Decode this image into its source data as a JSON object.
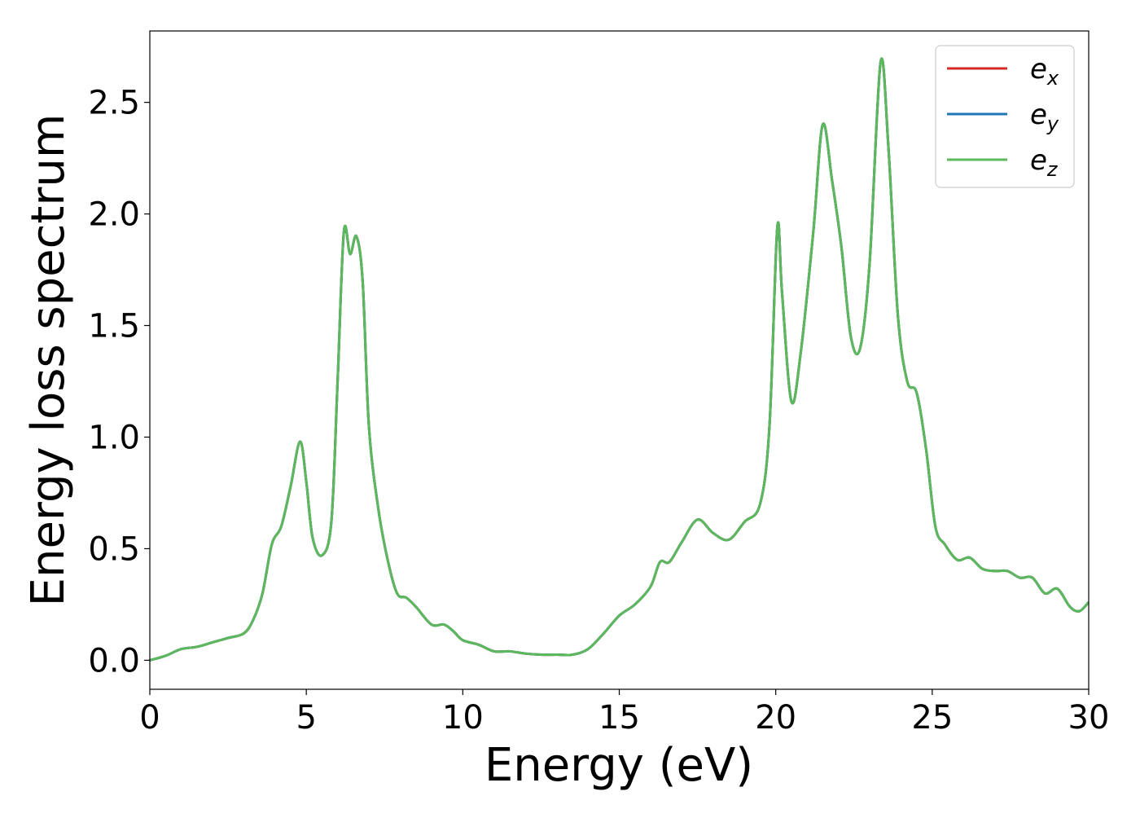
{
  "chart_data": {
    "type": "line",
    "title": "",
    "xlabel": "Energy (eV)",
    "ylabel": "Energy loss spectrum",
    "xlim": [
      0,
      30
    ],
    "ylim": [
      -0.13,
      2.82
    ],
    "xticks": [
      0,
      5,
      10,
      15,
      20,
      25,
      30
    ],
    "xtick_labels": [
      "0",
      "5",
      "10",
      "15",
      "20",
      "25",
      "30"
    ],
    "yticks": [
      0.0,
      0.5,
      1.0,
      1.5,
      2.0,
      2.5
    ],
    "ytick_labels": [
      "0.0",
      "0.5",
      "1.0",
      "1.5",
      "2.0",
      "2.5"
    ],
    "grid": false,
    "legend": {
      "position": "top-right",
      "entries": [
        {
          "base": "e",
          "sub": "x",
          "color": "#d62728"
        },
        {
          "base": "e",
          "sub": "y",
          "color": "#1f77b4"
        },
        {
          "base": "e",
          "sub": "z",
          "color": "#5cb85c"
        }
      ]
    },
    "x": [
      0,
      0.5,
      1.0,
      1.5,
      2.0,
      2.5,
      3.0,
      3.3,
      3.6,
      3.9,
      4.2,
      4.5,
      4.8,
      5.0,
      5.2,
      5.5,
      5.8,
      6.0,
      6.2,
      6.4,
      6.6,
      6.8,
      7.0,
      7.3,
      7.6,
      7.9,
      8.2,
      8.5,
      9.0,
      9.4,
      9.7,
      10.0,
      10.5,
      11.0,
      11.5,
      12.0,
      12.5,
      13.0,
      13.5,
      14.0,
      14.5,
      15.0,
      15.5,
      16.0,
      16.3,
      16.6,
      17.0,
      17.5,
      18.0,
      18.5,
      19.0,
      19.5,
      19.8,
      20.05,
      20.2,
      20.5,
      20.8,
      21.2,
      21.5,
      21.8,
      22.1,
      22.4,
      22.7,
      23.0,
      23.35,
      23.6,
      23.9,
      24.2,
      24.5,
      24.8,
      25.1,
      25.4,
      25.8,
      26.2,
      26.6,
      27.0,
      27.4,
      27.8,
      28.2,
      28.6,
      29.0,
      29.4,
      29.7,
      30.0
    ],
    "series": [
      {
        "name": "e_x",
        "color": "#d62728",
        "values": [
          0.0,
          0.02,
          0.05,
          0.06,
          0.08,
          0.1,
          0.12,
          0.18,
          0.3,
          0.52,
          0.6,
          0.78,
          0.98,
          0.8,
          0.55,
          0.47,
          0.62,
          1.25,
          1.92,
          1.82,
          1.9,
          1.7,
          1.05,
          0.68,
          0.45,
          0.3,
          0.28,
          0.24,
          0.16,
          0.16,
          0.13,
          0.09,
          0.07,
          0.04,
          0.04,
          0.03,
          0.025,
          0.025,
          0.025,
          0.05,
          0.12,
          0.2,
          0.25,
          0.33,
          0.44,
          0.44,
          0.53,
          0.63,
          0.57,
          0.54,
          0.62,
          0.7,
          1.05,
          1.94,
          1.65,
          1.16,
          1.38,
          1.92,
          2.4,
          2.15,
          1.85,
          1.45,
          1.4,
          1.78,
          2.68,
          2.3,
          1.55,
          1.25,
          1.2,
          0.95,
          0.6,
          0.52,
          0.45,
          0.46,
          0.41,
          0.4,
          0.4,
          0.37,
          0.37,
          0.3,
          0.32,
          0.24,
          0.22,
          0.26
        ]
      },
      {
        "name": "e_y",
        "color": "#1f77b4",
        "values": [
          0.0,
          0.02,
          0.05,
          0.06,
          0.08,
          0.1,
          0.12,
          0.18,
          0.3,
          0.52,
          0.6,
          0.78,
          0.98,
          0.8,
          0.55,
          0.47,
          0.62,
          1.25,
          1.92,
          1.82,
          1.9,
          1.7,
          1.05,
          0.68,
          0.45,
          0.3,
          0.28,
          0.24,
          0.16,
          0.16,
          0.13,
          0.09,
          0.07,
          0.04,
          0.04,
          0.03,
          0.025,
          0.025,
          0.025,
          0.05,
          0.12,
          0.2,
          0.25,
          0.33,
          0.44,
          0.44,
          0.53,
          0.63,
          0.57,
          0.54,
          0.62,
          0.7,
          1.05,
          1.94,
          1.65,
          1.16,
          1.38,
          1.92,
          2.4,
          2.15,
          1.85,
          1.45,
          1.4,
          1.78,
          2.68,
          2.3,
          1.55,
          1.25,
          1.2,
          0.95,
          0.6,
          0.52,
          0.45,
          0.46,
          0.41,
          0.4,
          0.4,
          0.37,
          0.37,
          0.3,
          0.32,
          0.24,
          0.22,
          0.26
        ]
      },
      {
        "name": "e_z",
        "color": "#5cb85c",
        "values": [
          0.0,
          0.02,
          0.05,
          0.06,
          0.08,
          0.1,
          0.12,
          0.18,
          0.3,
          0.52,
          0.6,
          0.78,
          0.98,
          0.8,
          0.55,
          0.47,
          0.62,
          1.25,
          1.92,
          1.82,
          1.9,
          1.7,
          1.05,
          0.68,
          0.45,
          0.3,
          0.28,
          0.24,
          0.16,
          0.16,
          0.13,
          0.09,
          0.07,
          0.04,
          0.04,
          0.03,
          0.025,
          0.025,
          0.025,
          0.05,
          0.12,
          0.2,
          0.25,
          0.33,
          0.44,
          0.44,
          0.53,
          0.63,
          0.57,
          0.54,
          0.62,
          0.7,
          1.05,
          1.94,
          1.65,
          1.16,
          1.38,
          1.92,
          2.4,
          2.15,
          1.85,
          1.45,
          1.4,
          1.78,
          2.68,
          2.3,
          1.55,
          1.25,
          1.2,
          0.95,
          0.6,
          0.52,
          0.45,
          0.46,
          0.41,
          0.4,
          0.4,
          0.37,
          0.37,
          0.3,
          0.32,
          0.24,
          0.22,
          0.26
        ]
      }
    ]
  }
}
